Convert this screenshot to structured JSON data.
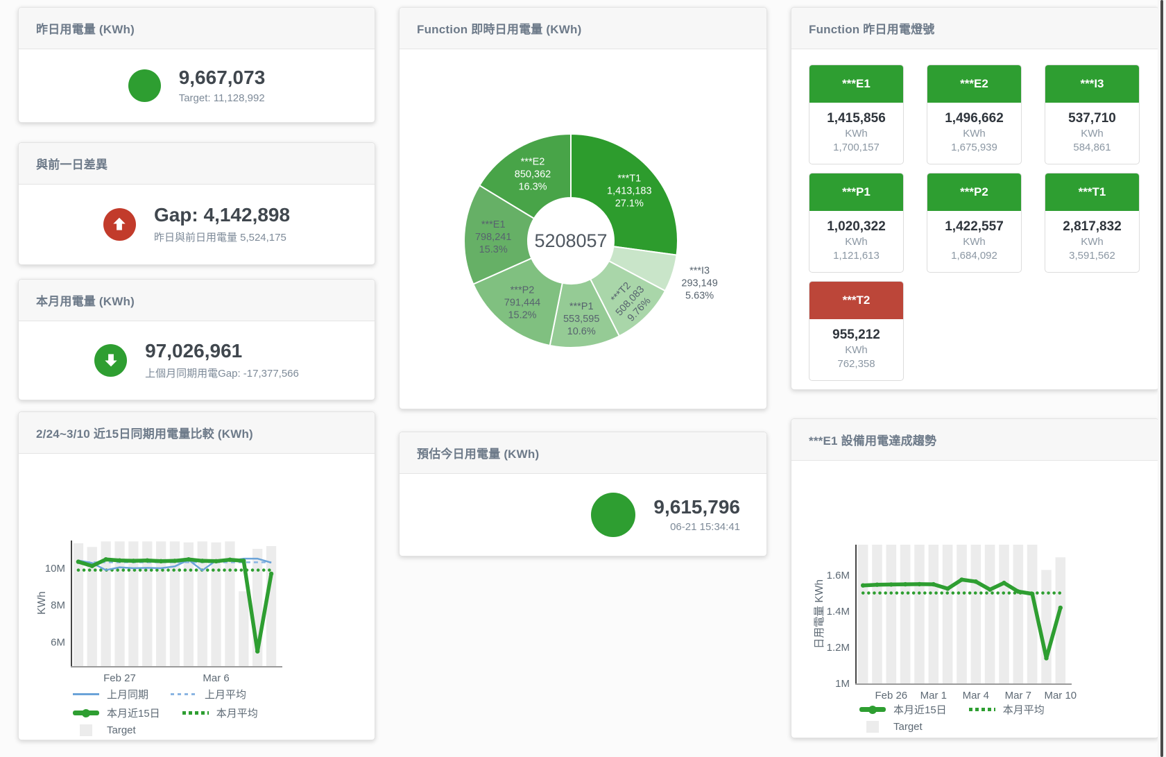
{
  "colors": {
    "green": "#2e9e31",
    "red_circle": "#c23b2b",
    "tile_red": "#bc4639",
    "blue_line": "#6aa3d8",
    "blue_dash": "#8ab5e2",
    "target_bar": "#ececec"
  },
  "cards": {
    "yesterday": {
      "title": "昨日用電量 (KWh)",
      "value": "9,667,073",
      "subtitle": "Target: 11,128,992"
    },
    "day_gap": {
      "title": "與前一日差異",
      "value": "Gap: 4,142,898",
      "subtitle": "昨日與前日用電量 5,524,175"
    },
    "month": {
      "title": "本月用電量 (KWh)",
      "value": "97,026,961",
      "subtitle": "上個月同期用電Gap: -17,377,566"
    },
    "realtime": {
      "title": "Function 即時日用電量 (KWh)"
    },
    "estimate": {
      "title": "預估今日用電量 (KWh)",
      "value": "9,615,796",
      "subtitle": "06-21 15:34:41"
    },
    "lights": {
      "title": "Function 昨日用電燈號",
      "tiles": [
        {
          "label": "***E1",
          "value": "1,415,856",
          "unit": "KWh",
          "target": "1,700,157",
          "status": "green"
        },
        {
          "label": "***E2",
          "value": "1,496,662",
          "unit": "KWh",
          "target": "1,675,939",
          "status": "green"
        },
        {
          "label": "***I3",
          "value": "537,710",
          "unit": "KWh",
          "target": "584,861",
          "status": "green"
        },
        {
          "label": "***P1",
          "value": "1,020,322",
          "unit": "KWh",
          "target": "1,121,613",
          "status": "green"
        },
        {
          "label": "***P2",
          "value": "1,422,557",
          "unit": "KWh",
          "target": "1,684,092",
          "status": "green"
        },
        {
          "label": "***T1",
          "value": "2,817,832",
          "unit": "KWh",
          "target": "3,591,562",
          "status": "green"
        },
        {
          "label": "***T2",
          "value": "955,212",
          "unit": "KWh",
          "target": "762,358",
          "status": "red"
        }
      ]
    },
    "compare": {
      "title": "2/24~3/10 近15日同期用電量比較 (KWh)"
    },
    "trend": {
      "title": "***E1 設備用電達成趨勢"
    }
  },
  "chart_data": [
    {
      "id": "realtime_donut",
      "type": "pie",
      "title": "Function 即時日用電量 (KWh)",
      "center_label": "5208057",
      "slices": [
        {
          "label": "***T1",
          "value": 1413183,
          "value_label": "1,413,183",
          "pct": "27.1%",
          "color": "#2d9c2d",
          "text": "light"
        },
        {
          "label": "***I3",
          "value": 293149,
          "value_label": "293,149",
          "pct": "5.63%",
          "color": "#c9e5c9",
          "text": "dark",
          "placement": "outside"
        },
        {
          "label": "***T2",
          "value": 508083,
          "value_label": "508,083",
          "pct": "9.76%",
          "color": "#a9d6a9",
          "text": "dark"
        },
        {
          "label": "***P1",
          "value": 553595,
          "value_label": "553,595",
          "pct": "10.6%",
          "color": "#95cb95",
          "text": "dark"
        },
        {
          "label": "***P2",
          "value": 791444,
          "value_label": "791,444",
          "pct": "15.2%",
          "color": "#80c080",
          "text": "dark"
        },
        {
          "label": "***E1",
          "value": 798241,
          "value_label": "798,241",
          "pct": "15.3%",
          "color": "#66b066",
          "text": "dark"
        },
        {
          "label": "***E2",
          "value": 850362,
          "value_label": "850,362",
          "pct": "16.3%",
          "color": "#48a448",
          "text": "light"
        }
      ]
    },
    {
      "id": "compare_chart",
      "type": "line",
      "title": "2/24~3/10 近15日同期用電量比較 (KWh)",
      "ylabel": "KWh",
      "ylim": [
        4700000,
        11500000
      ],
      "categories": [
        "2/24",
        "2/25",
        "2/26",
        "2/27",
        "2/28",
        "3/1",
        "3/2",
        "3/3",
        "3/4",
        "3/5",
        "3/6",
        "3/7",
        "3/8",
        "3/9",
        "3/10"
      ],
      "xticks": [
        {
          "index": 3,
          "label": "Feb 27"
        },
        {
          "index": 10,
          "label": "Mar 6"
        }
      ],
      "yticks": [
        {
          "value": 6000000,
          "label": "6M"
        },
        {
          "value": 8000000,
          "label": "8M"
        },
        {
          "value": 10000000,
          "label": "10M"
        }
      ],
      "series": [
        {
          "name": "Target",
          "role": "bar",
          "color": "#ececec",
          "values": [
            11350000,
            11150000,
            11450000,
            11450000,
            11450000,
            11450000,
            11450000,
            11450000,
            11400000,
            11450000,
            11400000,
            11450000,
            8750000,
            11050000,
            11200000
          ]
        },
        {
          "name": "上月平均",
          "role": "line-dash",
          "color": "#8ab5e2",
          "constant": 10320000
        },
        {
          "name": "本月平均",
          "role": "line-dot",
          "color": "#2e9e31",
          "constant": 9900000
        },
        {
          "name": "上月同期",
          "role": "line-thin",
          "color": "#6aa3d8",
          "values": [
            10420000,
            10280000,
            9900000,
            10050000,
            10000000,
            10020000,
            10000000,
            10100000,
            10450000,
            9880000,
            10420000,
            10400000,
            10520000,
            10520000,
            10300000
          ]
        },
        {
          "name": "本月近15日",
          "role": "line-thick",
          "color": "#2e9e31",
          "values": [
            10350000,
            10120000,
            10480000,
            10420000,
            10400000,
            10420000,
            10380000,
            10400000,
            10480000,
            10400000,
            10380000,
            10460000,
            10400000,
            5500000,
            9700000
          ]
        }
      ],
      "legend_rows": [
        [
          "上月同期",
          "上月平均"
        ],
        [
          "本月近15日",
          "本月平均"
        ],
        [
          "Target"
        ]
      ]
    },
    {
      "id": "trend_chart",
      "type": "line",
      "title": "***E1 設備用電達成趨勢",
      "ylabel": "日用電量 KWh",
      "ylim": [
        1000000,
        1770000
      ],
      "categories": [
        "2/24",
        "2/25",
        "2/26",
        "2/27",
        "2/28",
        "3/1",
        "3/2",
        "3/3",
        "3/4",
        "3/5",
        "3/6",
        "3/7",
        "3/8",
        "3/9",
        "3/10"
      ],
      "xticks": [
        {
          "index": 2,
          "label": "Feb 26"
        },
        {
          "index": 5,
          "label": "Mar 1"
        },
        {
          "index": 8,
          "label": "Mar 4"
        },
        {
          "index": 11,
          "label": "Mar 7"
        },
        {
          "index": 14,
          "label": "Mar 10"
        }
      ],
      "yticks": [
        {
          "value": 1000000,
          "label": "1M"
        },
        {
          "value": 1200000,
          "label": "1.2M"
        },
        {
          "value": 1400000,
          "label": "1.4M"
        },
        {
          "value": 1600000,
          "label": "1.6M"
        }
      ],
      "series": [
        {
          "name": "Target",
          "role": "bar",
          "color": "#ececec",
          "values": [
            1770000,
            1770000,
            1770000,
            1770000,
            1770000,
            1770000,
            1770000,
            1770000,
            1770000,
            1770000,
            1770000,
            1770000,
            1770000,
            1630000,
            1700000
          ]
        },
        {
          "name": "本月平均",
          "role": "line-dot",
          "color": "#2e9e31",
          "constant": 1502000
        },
        {
          "name": "本月近15日",
          "role": "line-thick",
          "color": "#2e9e31",
          "values": [
            1544000,
            1548000,
            1549000,
            1550000,
            1551000,
            1550000,
            1526000,
            1576000,
            1565000,
            1521000,
            1558000,
            1510000,
            1497000,
            1140000,
            1420000
          ]
        }
      ],
      "legend_rows": [
        [
          "本月近15日",
          "本月平均"
        ],
        [
          "Target"
        ]
      ]
    }
  ]
}
